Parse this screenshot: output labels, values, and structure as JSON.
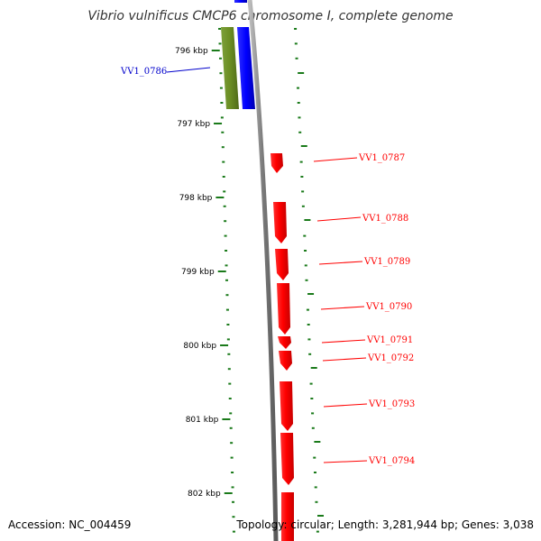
{
  "title": "Vibrio vulnificus CMCP6 chromosome I, complete genome",
  "accession": "Accession: NC_004459",
  "topology": "Topology: circular; Length: 3,281,944 bp; Genes: 3,038",
  "colors": {
    "backbone": "#8c8c8c",
    "forward_gene": "#0000ff",
    "olive_gene": "#6b8e23",
    "reverse_gene": "#ff0000",
    "ticks": "#1a7a1a",
    "label_red": "#ff0000",
    "label_blue": "#0000cc"
  },
  "scale_labels": [
    "796 kbp",
    "797 kbp",
    "798 kbp",
    "799 kbp",
    "800 kbp",
    "801 kbp",
    "802 kbp"
  ],
  "genes": [
    {
      "name": "VV1_0786",
      "strand": "forward"
    },
    {
      "name": "VV1_0787",
      "strand": "reverse"
    },
    {
      "name": "VV1_0788",
      "strand": "reverse"
    },
    {
      "name": "VV1_0789",
      "strand": "reverse"
    },
    {
      "name": "VV1_0790",
      "strand": "reverse"
    },
    {
      "name": "VV1_0791",
      "strand": "reverse"
    },
    {
      "name": "VV1_0792",
      "strand": "reverse"
    },
    {
      "name": "VV1_0793",
      "strand": "reverse"
    },
    {
      "name": "VV1_0794",
      "strand": "reverse"
    }
  ]
}
